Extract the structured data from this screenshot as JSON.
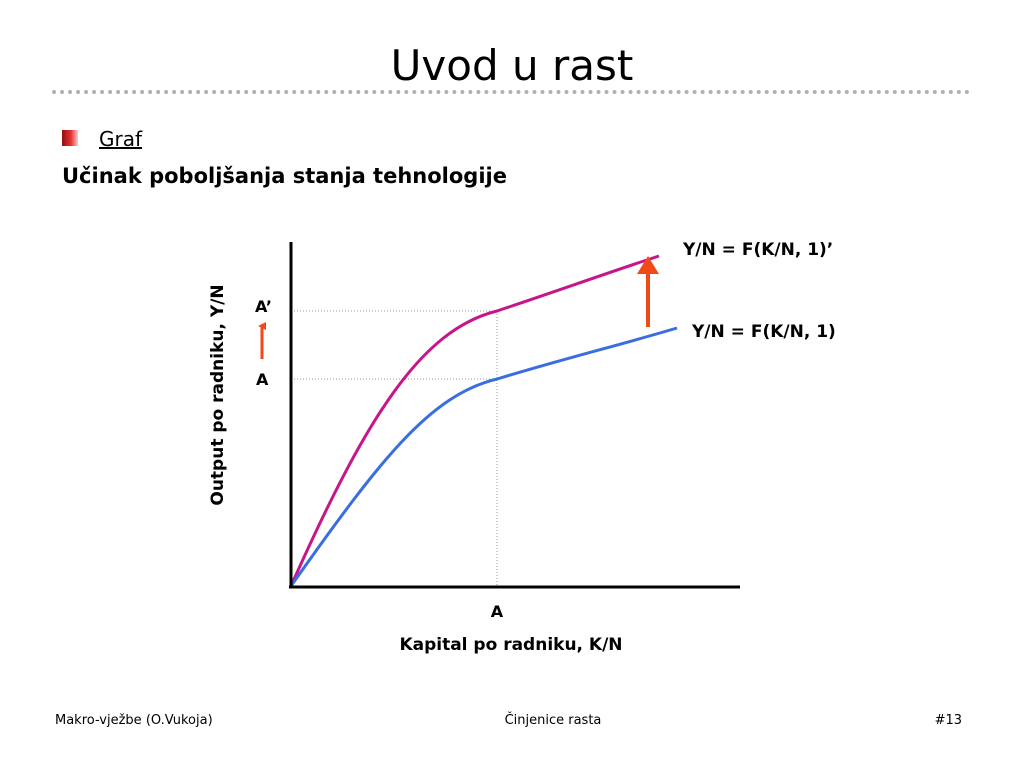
{
  "slide": {
    "title": "Uvod u rast",
    "bullet": "Graf",
    "subtitle": "Učinak poboljšanja stanja tehnologije"
  },
  "chart_data": {
    "type": "line",
    "xlabel": "Kapital po radniku, K/N",
    "ylabel": "Output po radniku, Y/N",
    "series": [
      {
        "name": "Y/N = F(K/N, 1)’",
        "color": "#c5168a"
      },
      {
        "name": "Y/N = F(K/N, 1)",
        "color": "#3a6ee0"
      }
    ],
    "x_marker": "A",
    "y_markers": [
      "A’",
      "A"
    ],
    "arrow_color": "#f04a1a"
  },
  "footer": {
    "left": "Makro-vježbe (O.Vukoja)",
    "center": "Činjenice rasta",
    "right": "#13"
  }
}
